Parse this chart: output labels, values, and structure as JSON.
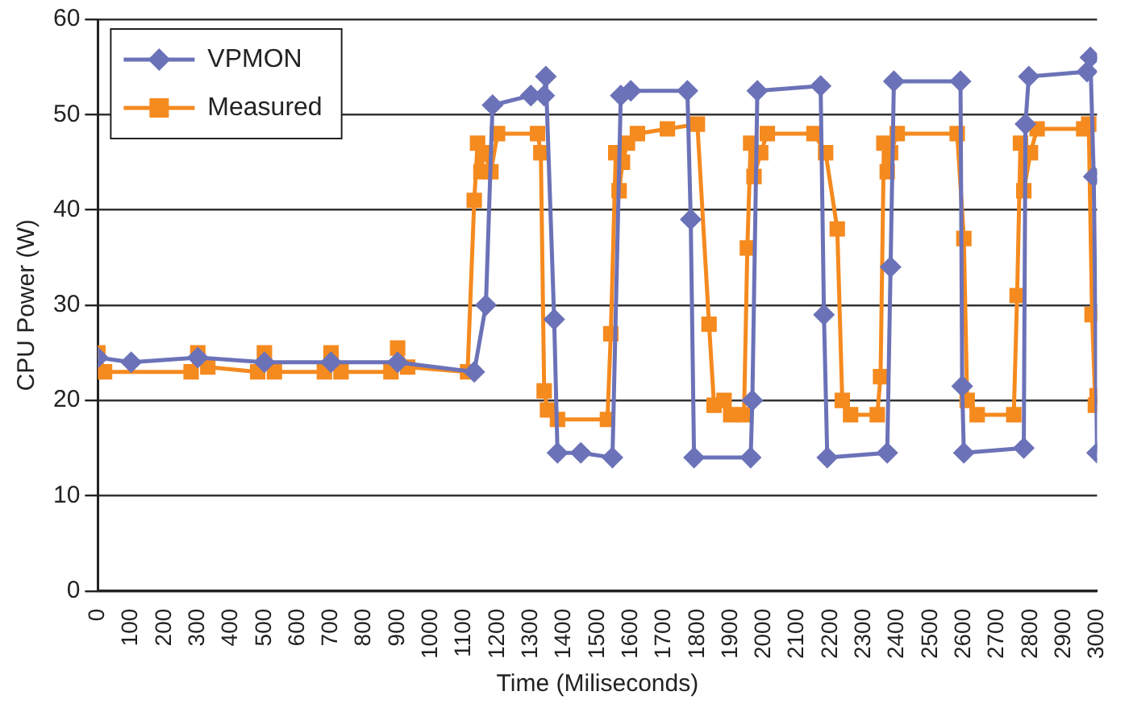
{
  "chart_data": {
    "type": "line",
    "xlabel": "Time (Miliseconds)",
    "ylabel": "CPU Power (W)",
    "xlim": [
      0,
      3000
    ],
    "xticks": [
      0,
      100,
      200,
      300,
      400,
      500,
      600,
      700,
      800,
      900,
      1000,
      1100,
      1200,
      1300,
      1400,
      1500,
      1600,
      1700,
      1800,
      1900,
      2000,
      2100,
      2200,
      2300,
      2400,
      2500,
      2600,
      2700,
      2800,
      2900,
      3000
    ],
    "ylim": [
      0,
      60
    ],
    "yticks": [
      0,
      10,
      20,
      30,
      40,
      50,
      60
    ],
    "grid": "y",
    "legend": "top left",
    "series": [
      {
        "name": "VPMON",
        "color": "#6b72b8",
        "marker": "diamond",
        "x": [
          0,
          100,
          300,
          500,
          700,
          900,
          1130,
          1165,
          1185,
          1300,
          1340,
          1345,
          1370,
          1380,
          1450,
          1545,
          1570,
          1600,
          1770,
          1780,
          1790,
          1960,
          1965,
          1980,
          2170,
          2180,
          2190,
          2370,
          2380,
          2390,
          2590,
          2595,
          2600,
          2780,
          2785,
          2795,
          2970,
          2980,
          2990,
          3000
        ],
        "values": [
          24.5,
          24,
          24.5,
          24,
          24,
          24,
          23,
          30,
          51,
          52,
          52,
          54,
          28.5,
          14.5,
          14.5,
          14,
          52,
          52.5,
          52.5,
          39,
          14,
          14,
          20,
          52.5,
          53,
          29,
          14,
          14.5,
          34,
          53.5,
          53.5,
          21.5,
          14.5,
          15,
          49,
          54,
          54.5,
          56,
          43.5,
          14.5
        ]
      },
      {
        "name": "Measured",
        "color": "#f58a1f",
        "marker": "square",
        "x": [
          0,
          20,
          280,
          300,
          330,
          480,
          500,
          530,
          680,
          700,
          730,
          880,
          900,
          930,
          1110,
          1130,
          1140,
          1150,
          1160,
          1180,
          1200,
          1320,
          1330,
          1340,
          1350,
          1380,
          1530,
          1540,
          1555,
          1565,
          1575,
          1590,
          1620,
          1710,
          1800,
          1835,
          1850,
          1880,
          1900,
          1940,
          1950,
          1960,
          1970,
          1990,
          2010,
          2150,
          2185,
          2220,
          2235,
          2260,
          2340,
          2350,
          2360,
          2370,
          2380,
          2400,
          2580,
          2600,
          2610,
          2640,
          2750,
          2760,
          2770,
          2780,
          2800,
          2820,
          2960,
          2975,
          2985,
          2995,
          3000
        ],
        "values": [
          25,
          23,
          23,
          25,
          23.5,
          23,
          25,
          23,
          23,
          25,
          23,
          23,
          25.5,
          23.5,
          23,
          41,
          47,
          44,
          46,
          44,
          48,
          48,
          46,
          21,
          19,
          18,
          18,
          27,
          46,
          42,
          45,
          47,
          48,
          48.5,
          49,
          28,
          19.5,
          20,
          18.5,
          18.5,
          36,
          47,
          43.5,
          46,
          48,
          48,
          46,
          38,
          20,
          18.5,
          18.5,
          22.5,
          47,
          44,
          46,
          48,
          48,
          37,
          20,
          18.5,
          18.5,
          31,
          47,
          42,
          46,
          48.5,
          48.5,
          49,
          29,
          19.5,
          20.5
        ]
      }
    ]
  }
}
